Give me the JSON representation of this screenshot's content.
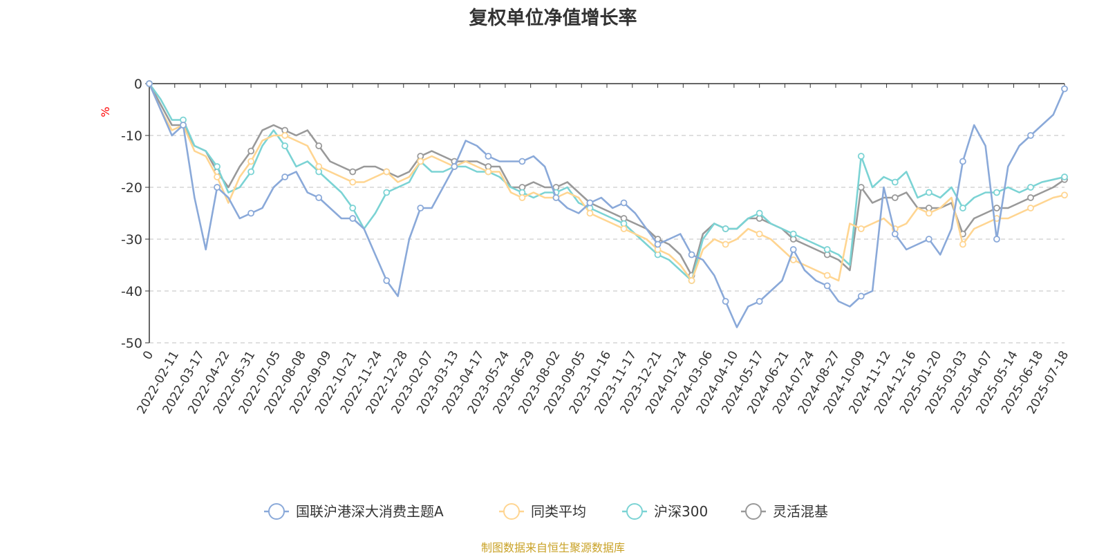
{
  "source_note": "制图数据来自恒生聚源数据库",
  "colors": {
    "source_note": "#c9a227",
    "ylabel": "#ff0000",
    "axis": "#333333",
    "grid": "#cccccc"
  },
  "chart_data": {
    "type": "line",
    "title": "复权单位净值增长率",
    "ylabel": "%",
    "xlabel": "",
    "ylim": [
      -50,
      0
    ],
    "yticks": [
      0,
      -10,
      -20,
      -30,
      -40,
      -50
    ],
    "grid": "horizontal dashed",
    "legend_position": "bottom-center",
    "x_tick_labels": [
      "0",
      "2022-02-11",
      "2022-03-17",
      "2022-04-22",
      "2022-05-31",
      "2022-07-05",
      "2022-08-08",
      "2022-09-09",
      "2022-10-21",
      "2022-11-24",
      "2022-12-28",
      "2023-02-07",
      "2023-03-13",
      "2023-04-17",
      "2023-05-24",
      "2023-06-29",
      "2023-08-02",
      "2023-09-05",
      "2023-10-16",
      "2023-11-17",
      "2023-12-21",
      "2024-01-24",
      "2024-03-06",
      "2024-04-10",
      "2024-05-17",
      "2024-06-21",
      "2024-07-24",
      "2024-08-27",
      "2024-10-09",
      "2024-11-12",
      "2024-12-16",
      "2025-01-20",
      "2025-03-03",
      "2025-04-07",
      "2025-05-14",
      "2025-06-18",
      "2025-07-18"
    ],
    "series": [
      {
        "name": "国联沪港深大消费主题A",
        "color": "#8aa9d9",
        "values": [
          0,
          -5,
          -10,
          -8,
          -22,
          -32,
          -20,
          -22,
          -26,
          -25,
          -24,
          -20,
          -18,
          -17,
          -21,
          -22,
          -24,
          -26,
          -26,
          -28,
          -33,
          -38,
          -41,
          -30,
          -24,
          -24,
          -20,
          -16,
          -11,
          -12,
          -14,
          -15,
          -15,
          -15,
          -14,
          -16,
          -22,
          -24,
          -25,
          -23,
          -22,
          -24,
          -23,
          -25,
          -28,
          -31,
          -30,
          -29,
          -33,
          -34,
          -37,
          -42,
          -47,
          -43,
          -42,
          -40,
          -38,
          -32,
          -36,
          -38,
          -39,
          -42,
          -43,
          -41,
          -40,
          -20,
          -29,
          -32,
          -31,
          -30,
          -33,
          -28,
          -15,
          -8,
          -12,
          -30,
          -16,
          -12,
          -10,
          -8,
          -6,
          -1
        ]
      },
      {
        "name": "同类平均",
        "color": "#ffd591",
        "values": [
          0,
          -5,
          -9,
          -8,
          -13,
          -14,
          -18,
          -23,
          -18,
          -15,
          -11,
          -10,
          -10,
          -11,
          -12,
          -16,
          -17,
          -18,
          -19,
          -19,
          -18,
          -17,
          -19,
          -18,
          -15,
          -14,
          -15,
          -16,
          -15,
          -16,
          -17,
          -17,
          -21,
          -22,
          -21,
          -22,
          -22,
          -21,
          -22,
          -25,
          -26,
          -27,
          -28,
          -29,
          -30,
          -32,
          -33,
          -35,
          -38,
          -32,
          -30,
          -31,
          -30,
          -28,
          -29,
          -30,
          -32,
          -34,
          -35,
          -36,
          -37,
          -38,
          -27,
          -28,
          -27,
          -26,
          -28,
          -27,
          -24,
          -25,
          -24,
          -22,
          -31,
          -28,
          -27,
          -26,
          -26,
          -25,
          -24,
          -23,
          -22,
          -21.5
        ]
      },
      {
        "name": "沪深300",
        "color": "#7bd3d4",
        "values": [
          0,
          -3,
          -7,
          -7,
          -12,
          -13,
          -16,
          -21,
          -20,
          -17,
          -12,
          -9,
          -12,
          -16,
          -15,
          -17,
          -19,
          -21,
          -24,
          -28,
          -25,
          -21,
          -20,
          -19,
          -15,
          -17,
          -17,
          -16,
          -16,
          -17,
          -17,
          -18,
          -20,
          -21,
          -22,
          -21,
          -21,
          -20,
          -23,
          -24,
          -25,
          -26,
          -27,
          -29,
          -31,
          -33,
          -34,
          -36,
          -38,
          -30,
          -27,
          -28,
          -28,
          -26,
          -25,
          -27,
          -28,
          -29,
          -30,
          -31,
          -32,
          -33,
          -35,
          -14,
          -20,
          -18,
          -19,
          -17,
          -22,
          -21,
          -22,
          -20,
          -24,
          -22,
          -21,
          -21,
          -20,
          -21,
          -20,
          -19,
          -18.5,
          -18
        ]
      },
      {
        "name": "灵活混基",
        "color": "#999999",
        "values": [
          0,
          -4,
          -8,
          -8,
          -12,
          -13,
          -17,
          -20,
          -16,
          -13,
          -9,
          -8,
          -9,
          -10,
          -9,
          -12,
          -15,
          -16,
          -17,
          -16,
          -16,
          -17,
          -18,
          -17,
          -14,
          -13,
          -14,
          -15,
          -15,
          -15,
          -16,
          -16,
          -20,
          -20,
          -19,
          -20,
          -20,
          -19,
          -21,
          -23,
          -24,
          -25,
          -26,
          -27,
          -28,
          -30,
          -31,
          -33,
          -37,
          -29,
          -27,
          -28,
          -28,
          -26,
          -26,
          -27,
          -28,
          -30,
          -31,
          -32,
          -33,
          -34,
          -36,
          -20,
          -23,
          -22,
          -22,
          -21,
          -24,
          -24,
          -24,
          -23,
          -29,
          -26,
          -25,
          -24,
          -24,
          -23,
          -22,
          -21,
          -20,
          -18.5
        ]
      }
    ]
  }
}
